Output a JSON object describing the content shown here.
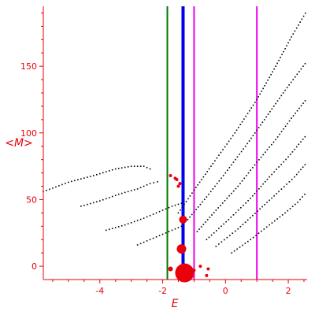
{
  "chart_data": {
    "type": "scatter",
    "title": "",
    "xlabel": "E",
    "ylabel": "<M>",
    "xlim": [
      -5.8,
      2.6
    ],
    "ylim": [
      -10,
      195
    ],
    "x_ticks": [
      -4,
      -2,
      0,
      2
    ],
    "y_ticks": [
      0,
      50,
      100,
      150
    ],
    "grid": false,
    "axis_color": "#e8000b",
    "vertical_lines": [
      {
        "x": -1.85,
        "color": "#007a00",
        "width": 2
      },
      {
        "x": -1.35,
        "color": "#0000ee",
        "width": 4
      },
      {
        "x": -1.0,
        "color": "#ee00ee",
        "width": 2
      },
      {
        "x": 1.0,
        "color": "#ee00ee",
        "width": 2
      }
    ],
    "branches": [
      {
        "x": [
          -5.8,
          -5.0,
          -4.2,
          -3.5,
          -3.0,
          -2.6,
          -2.3
        ],
        "y": [
          56,
          63,
          68,
          73,
          75,
          75,
          72
        ],
        "color": "#000000"
      },
      {
        "x": [
          -4.6,
          -4.0,
          -3.4,
          -2.8,
          -2.4,
          -2.05
        ],
        "y": [
          45,
          49,
          54,
          58,
          62,
          64
        ],
        "color": "#000000"
      },
      {
        "x": [
          -3.8,
          -3.2,
          -2.6,
          -2.1,
          -1.7,
          -1.3
        ],
        "y": [
          27,
          31,
          36,
          41,
          45,
          48
        ],
        "color": "#000000"
      },
      {
        "x": [
          -2.8,
          -2.4,
          -2.0,
          -1.6,
          -1.3
        ],
        "y": [
          16,
          20,
          24,
          28,
          31
        ],
        "color": "#000000"
      },
      {
        "x": [
          -1.5,
          -1.0,
          -0.4,
          0.3,
          1.0,
          1.6,
          2.1,
          2.6
        ],
        "y": [
          40,
          57,
          77,
          100,
          125,
          150,
          172,
          192
        ],
        "color": "#000000"
      },
      {
        "x": [
          -1.2,
          -0.6,
          0.0,
          0.7,
          1.3,
          1.9,
          2.6
        ],
        "y": [
          35,
          52,
          70,
          92,
          112,
          132,
          154
        ],
        "color": "#000000"
      },
      {
        "x": [
          -0.9,
          -0.3,
          0.4,
          1.0,
          1.6,
          2.1,
          2.6
        ],
        "y": [
          26,
          42,
          60,
          78,
          95,
          111,
          126
        ],
        "color": "#000000"
      },
      {
        "x": [
          -0.6,
          0.1,
          0.8,
          1.4,
          2.0,
          2.6
        ],
        "y": [
          20,
          35,
          51,
          67,
          82,
          99
        ],
        "color": "#000000"
      },
      {
        "x": [
          -0.3,
          0.4,
          1.1,
          1.7,
          2.2,
          2.6
        ],
        "y": [
          15,
          28,
          43,
          56,
          67,
          78
        ],
        "color": "#000000"
      },
      {
        "x": [
          0.2,
          0.8,
          1.4,
          1.9,
          2.3,
          2.6
        ],
        "y": [
          10,
          20,
          31,
          40,
          48,
          56
        ],
        "color": "#000000"
      }
    ],
    "red_points": [
      {
        "x": -1.55,
        "y": 65,
        "size": 2
      },
      {
        "x": -1.45,
        "y": 62,
        "size": 2
      },
      {
        "x": -1.75,
        "y": 68,
        "size": 2
      },
      {
        "x": -1.5,
        "y": 60,
        "size": 2
      },
      {
        "x": -1.6,
        "y": 66,
        "size": 2
      },
      {
        "x": -1.35,
        "y": 35,
        "size": 5
      },
      {
        "x": -1.4,
        "y": 13,
        "size": 6
      },
      {
        "x": -1.75,
        "y": -2,
        "size": 3
      },
      {
        "x": -1.3,
        "y": -5,
        "size": 12
      },
      {
        "x": -0.55,
        "y": -2,
        "size": 2
      },
      {
        "x": -0.8,
        "y": 0,
        "size": 2
      },
      {
        "x": -0.6,
        "y": -7,
        "size": 2
      },
      {
        "x": -1.0,
        "y": -3,
        "size": 2
      }
    ]
  }
}
